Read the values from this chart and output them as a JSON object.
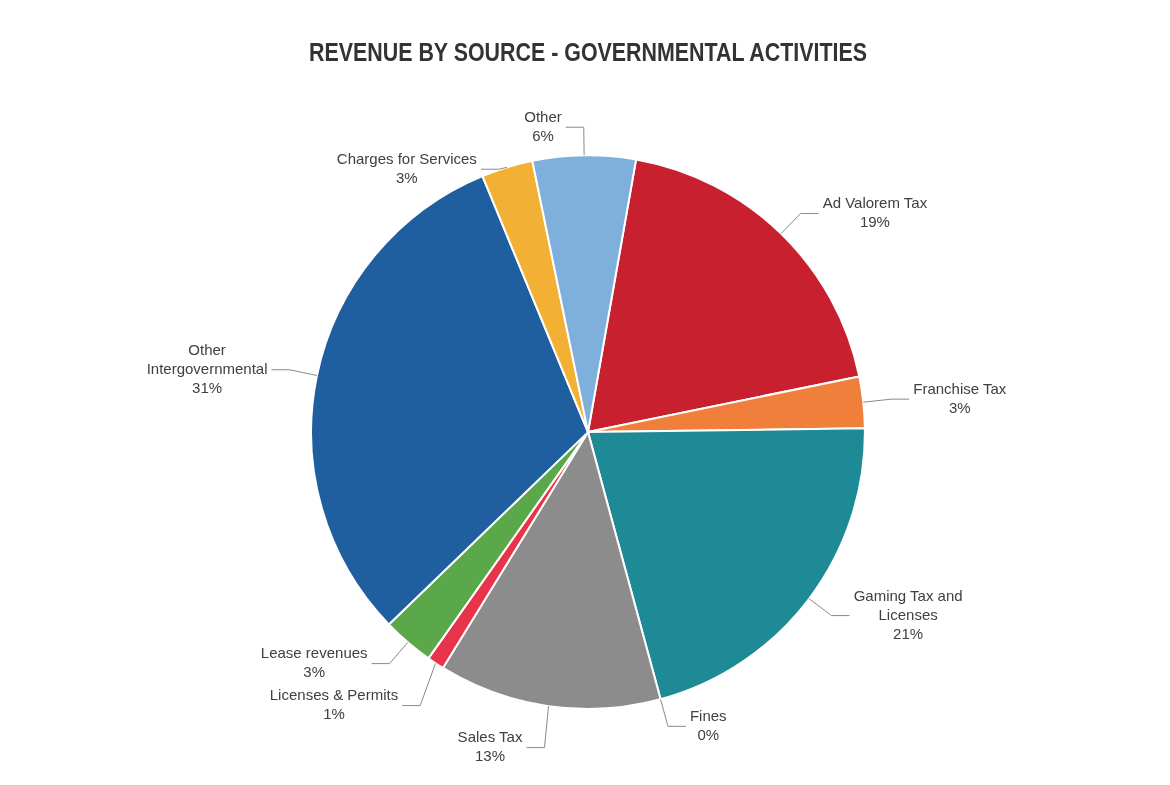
{
  "chart_data": {
    "type": "pie",
    "title": "REVENUE BY SOURCE - GOVERNMENTAL ACTIVITIES",
    "categories": [
      "Ad Valorem Tax",
      "Franchise Tax",
      "Gaming Tax and Licenses",
      "Fines",
      "Sales Tax",
      "Licenses & Permits",
      "Lease revenues",
      "Other Intergovernmental",
      "Charges for Services",
      "Other"
    ],
    "values": [
      19,
      3,
      21,
      0,
      13,
      1,
      3,
      31,
      3,
      6
    ],
    "colors": [
      "#c8202f",
      "#f07f3c",
      "#1e8a96",
      "#d9d9d9",
      "#8c8c8c",
      "#e8344a",
      "#5ba84a",
      "#1f5fa0",
      "#f2b135",
      "#7fb0dc"
    ],
    "value_labels": [
      "19%",
      "3%",
      "21%",
      "0%",
      "13%",
      "1%",
      "3%",
      "31%",
      "3%",
      "6%"
    ]
  }
}
